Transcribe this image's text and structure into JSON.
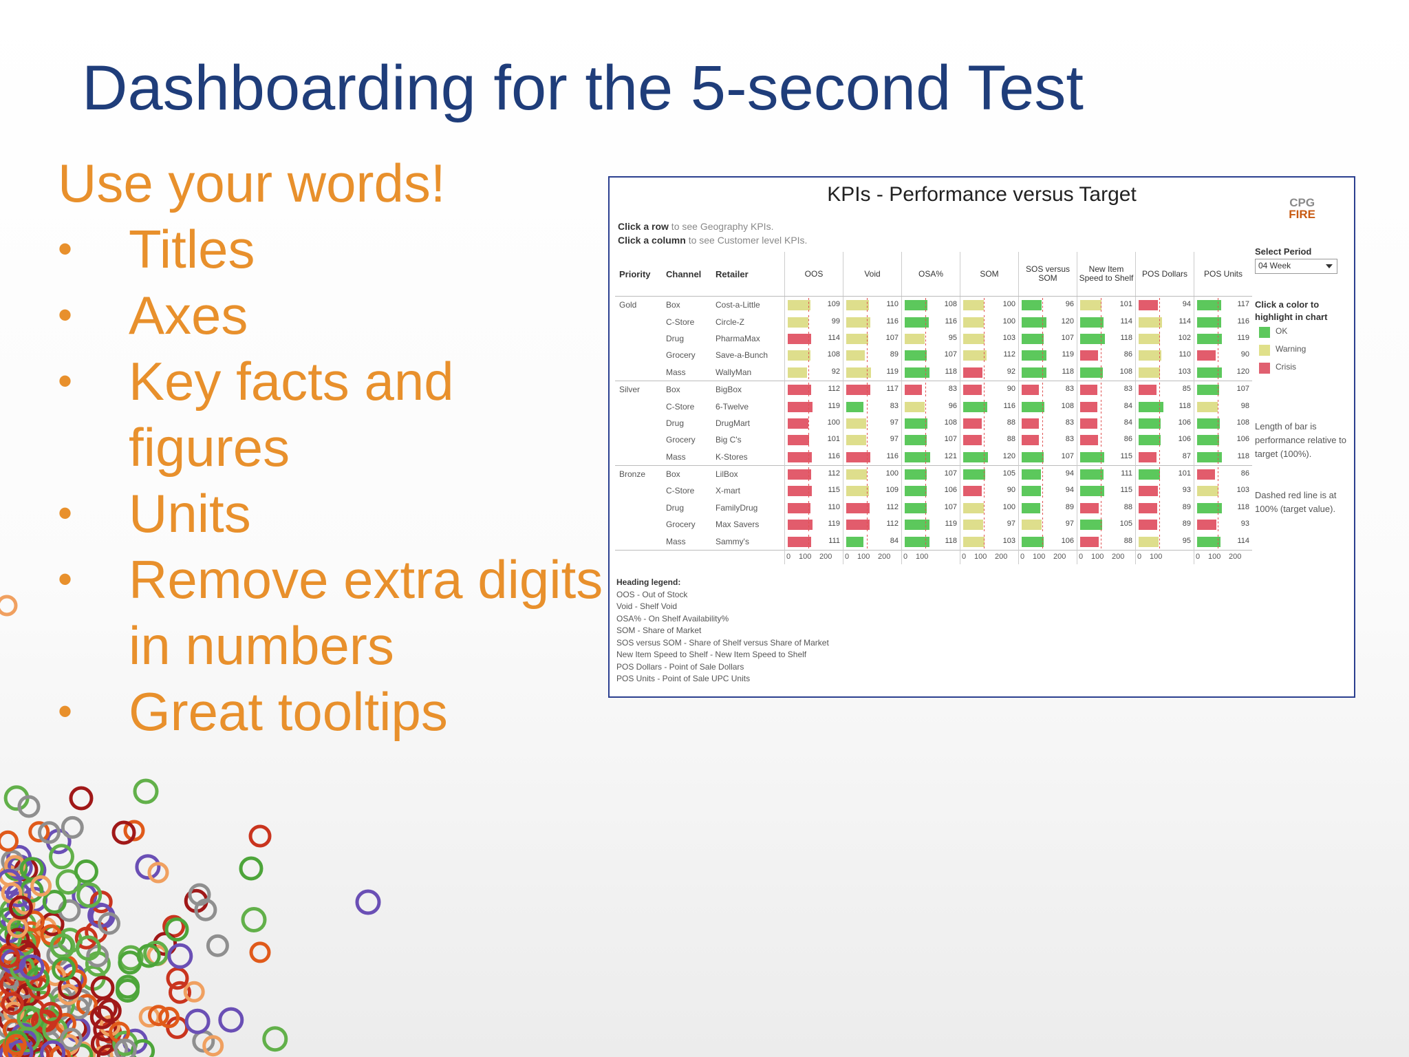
{
  "slide": {
    "title": "Dashboarding for the 5-second Test",
    "lead": "Use your words!",
    "bullets": [
      {
        "text": "Titles"
      },
      {
        "text": "Axes"
      },
      {
        "text": "Key facts and figures"
      },
      {
        "text": "Units"
      },
      {
        "text": "Remove extra digits in numbers"
      },
      {
        "text": "Great tooltips"
      }
    ],
    "bullet_glyph": "•"
  },
  "dashboard": {
    "title": "KPIs - Performance versus Target",
    "logo_line1": "CPG",
    "logo_line2": "FIRE",
    "hint1_bold": "Click a row",
    "hint1_rest": " to see Geography KPIs.",
    "hint2_bold": "Click a column",
    "hint2_rest": " to see Customer level KPIs.",
    "headers": {
      "priority": "Priority",
      "channel": "Channel",
      "retailer": "Retailer",
      "metrics": [
        "OOS",
        "Void",
        "OSA%",
        "SOM",
        "SOS versus SOM",
        "New Item Speed to Shelf",
        "POS Dollars",
        "POS Units"
      ]
    },
    "select_period_label": "Select Period",
    "select_period_value": "04 Week",
    "click_color_label": "Click a color to highlight in chart",
    "status_legend": [
      {
        "label": "OK",
        "color": "#5cc85c"
      },
      {
        "label": "Warning",
        "color": "#e0e08a"
      },
      {
        "label": "Crisis",
        "color": "#e06070"
      }
    ],
    "note1": "Length of bar is performance relative to target (100%).",
    "note2": "Dashed red line is at 100% (target value).",
    "axis_ticks_wide": [
      "0",
      "100",
      "200"
    ],
    "axis_ticks_narrow": [
      "0",
      "100"
    ],
    "rows": [
      {
        "priority": "Gold",
        "channel": "Box",
        "retailer": "Cost-a-Little",
        "values": [
          109,
          110,
          108,
          100,
          96,
          101,
          94,
          117
        ],
        "status": [
          "w",
          "w",
          "g",
          "w",
          "g",
          "w",
          "r",
          "g"
        ]
      },
      {
        "priority": "",
        "channel": "C-Store",
        "retailer": "Circle-Z",
        "values": [
          99,
          116,
          116,
          100,
          120,
          114,
          114,
          116
        ],
        "status": [
          "w",
          "w",
          "g",
          "w",
          "g",
          "g",
          "w",
          "g"
        ]
      },
      {
        "priority": "",
        "channel": "Drug",
        "retailer": "PharmaMax",
        "values": [
          114,
          107,
          95,
          103,
          107,
          118,
          102,
          119
        ],
        "status": [
          "r",
          "w",
          "w",
          "w",
          "g",
          "g",
          "w",
          "g"
        ]
      },
      {
        "priority": "",
        "channel": "Grocery",
        "retailer": "Save-a-Bunch",
        "values": [
          108,
          89,
          107,
          112,
          119,
          86,
          110,
          90
        ],
        "status": [
          "w",
          "w",
          "g",
          "w",
          "g",
          "r",
          "w",
          "r"
        ]
      },
      {
        "priority": "",
        "channel": "Mass",
        "retailer": "WallyMan",
        "values": [
          92,
          119,
          118,
          92,
          118,
          108,
          103,
          120
        ],
        "status": [
          "w",
          "w",
          "g",
          "r",
          "g",
          "g",
          "w",
          "g"
        ]
      },
      {
        "priority": "Silver",
        "channel": "Box",
        "retailer": "BigBox",
        "values": [
          112,
          117,
          83,
          90,
          83,
          83,
          85,
          107
        ],
        "status": [
          "r",
          "r",
          "r",
          "r",
          "r",
          "r",
          "r",
          "g"
        ]
      },
      {
        "priority": "",
        "channel": "C-Store",
        "retailer": "6-Twelve",
        "values": [
          119,
          83,
          96,
          116,
          108,
          84,
          118,
          98
        ],
        "status": [
          "r",
          "g",
          "w",
          "g",
          "g",
          "r",
          "g",
          "w"
        ]
      },
      {
        "priority": "",
        "channel": "Drug",
        "retailer": "DrugMart",
        "values": [
          100,
          97,
          108,
          88,
          83,
          84,
          106,
          108
        ],
        "status": [
          "r",
          "w",
          "g",
          "r",
          "r",
          "r",
          "g",
          "g"
        ]
      },
      {
        "priority": "",
        "channel": "Grocery",
        "retailer": "Big C's",
        "values": [
          101,
          97,
          107,
          88,
          83,
          86,
          106,
          106
        ],
        "status": [
          "r",
          "w",
          "g",
          "r",
          "r",
          "r",
          "g",
          "g"
        ]
      },
      {
        "priority": "",
        "channel": "Mass",
        "retailer": "K-Stores",
        "values": [
          116,
          116,
          121,
          120,
          107,
          115,
          87,
          118
        ],
        "status": [
          "r",
          "r",
          "g",
          "g",
          "g",
          "g",
          "r",
          "g"
        ]
      },
      {
        "priority": "Bronze",
        "channel": "Box",
        "retailer": "LilBox",
        "values": [
          112,
          100,
          107,
          105,
          94,
          111,
          101,
          86
        ],
        "status": [
          "r",
          "w",
          "g",
          "g",
          "g",
          "g",
          "g",
          "r"
        ]
      },
      {
        "priority": "",
        "channel": "C-Store",
        "retailer": "X-mart",
        "values": [
          115,
          109,
          106,
          90,
          94,
          115,
          93,
          103
        ],
        "status": [
          "r",
          "w",
          "g",
          "r",
          "g",
          "g",
          "r",
          "w"
        ]
      },
      {
        "priority": "",
        "channel": "Drug",
        "retailer": "FamilyDrug",
        "values": [
          110,
          112,
          107,
          100,
          89,
          88,
          89,
          118
        ],
        "status": [
          "r",
          "r",
          "g",
          "w",
          "g",
          "r",
          "r",
          "g"
        ]
      },
      {
        "priority": "",
        "channel": "Grocery",
        "retailer": "Max Savers",
        "values": [
          119,
          112,
          119,
          97,
          97,
          105,
          89,
          93
        ],
        "status": [
          "r",
          "r",
          "g",
          "w",
          "w",
          "g",
          "r",
          "r"
        ]
      },
      {
        "priority": "",
        "channel": "Mass",
        "retailer": "Sammy's",
        "values": [
          111,
          84,
          118,
          103,
          106,
          88,
          95,
          114
        ],
        "status": [
          "r",
          "g",
          "g",
          "w",
          "g",
          "r",
          "w",
          "g"
        ]
      }
    ],
    "heading_legend_title": "Heading legend:",
    "heading_legend": [
      "OOS - Out of Stock",
      "Void - Shelf Void",
      "OSA% - On Shelf Availability%",
      "SOM - Share of Market",
      "SOS versus SOM - Share of Shelf versus Share of Market",
      "New Item Speed to Shelf - New Item Speed to Shelf",
      "POS Dollars - Point of Sale Dollars",
      "POS Units - Point of Sale UPC Units"
    ],
    "colors": {
      "ok": "#5cc85c",
      "warning": "#dede8c",
      "crisis": "#e25c6c"
    }
  }
}
